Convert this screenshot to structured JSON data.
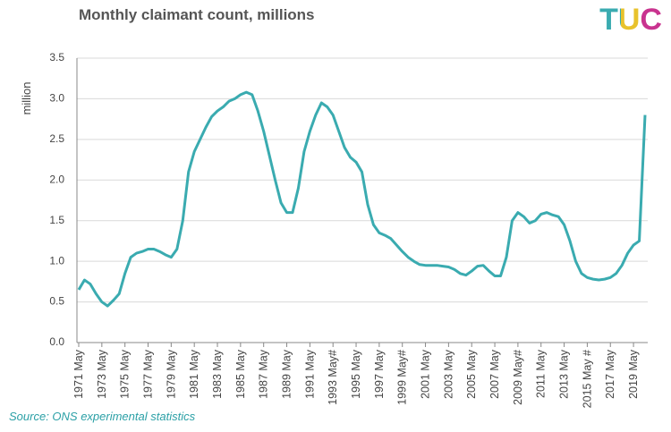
{
  "chart_data": {
    "type": "line",
    "title": "Monthly claimant count, millions",
    "y_label": "million",
    "source": "Source: ONS experimental statistics",
    "logo": "TUC",
    "categories": [
      "1971 May",
      null,
      null,
      null,
      "1973 May",
      null,
      null,
      null,
      "1975 May",
      null,
      null,
      null,
      "1977 May",
      null,
      null,
      null,
      "1979 May",
      null,
      null,
      null,
      "1981 May",
      null,
      null,
      null,
      "1983 May",
      null,
      null,
      null,
      "1985 May",
      null,
      null,
      null,
      "1987 May",
      null,
      null,
      null,
      "1989 May",
      null,
      null,
      null,
      "1991 May",
      null,
      null,
      null,
      "1993 May#",
      null,
      null,
      null,
      "1995 May",
      null,
      null,
      null,
      "1997 May",
      null,
      null,
      null,
      "1999 May#",
      null,
      null,
      null,
      "2001 May",
      null,
      null,
      null,
      "2003 May",
      null,
      null,
      null,
      "2005 May",
      null,
      null,
      null,
      "2007 May",
      null,
      null,
      null,
      "2009 May#",
      null,
      null,
      null,
      "2011 May",
      null,
      null,
      null,
      "2013 May",
      null,
      null,
      null,
      "2015 May #",
      null,
      null,
      null,
      "2017 May",
      null,
      null,
      null,
      "2019 May",
      null,
      null
    ],
    "series": [
      {
        "name": "Claimant count",
        "color": "#3aabb0",
        "values": [
          0.65,
          0.77,
          0.72,
          0.6,
          0.5,
          0.45,
          0.52,
          0.6,
          0.85,
          1.05,
          1.1,
          1.12,
          1.15,
          1.15,
          1.12,
          1.08,
          1.05,
          1.15,
          1.5,
          2.1,
          2.35,
          2.5,
          2.65,
          2.78,
          2.85,
          2.9,
          2.97,
          3.0,
          3.05,
          3.08,
          3.05,
          2.85,
          2.6,
          2.3,
          2.0,
          1.72,
          1.6,
          1.6,
          1.9,
          2.35,
          2.6,
          2.8,
          2.95,
          2.9,
          2.8,
          2.6,
          2.4,
          2.28,
          2.22,
          2.1,
          1.7,
          1.45,
          1.35,
          1.32,
          1.28,
          1.2,
          1.12,
          1.05,
          1.0,
          0.96,
          0.95,
          0.95,
          0.95,
          0.94,
          0.93,
          0.9,
          0.85,
          0.83,
          0.88,
          0.94,
          0.95,
          0.88,
          0.82,
          0.82,
          1.05,
          1.5,
          1.6,
          1.55,
          1.47,
          1.5,
          1.58,
          1.6,
          1.57,
          1.55,
          1.45,
          1.25,
          1.0,
          0.85,
          0.8,
          0.78,
          0.77,
          0.78,
          0.8,
          0.85,
          0.95,
          1.1,
          1.2,
          1.25,
          2.8
        ]
      }
    ],
    "ylim": [
      0,
      3.5
    ],
    "yticks": [
      {
        "value": 0,
        "label": "0.0"
      },
      {
        "value": 0.5,
        "label": "0.5"
      },
      {
        "value": 1,
        "label": "1.0"
      },
      {
        "value": 1.5,
        "label": "1.5"
      },
      {
        "value": 2,
        "label": "2.0"
      },
      {
        "value": 2.5,
        "label": "2.5"
      },
      {
        "value": 3,
        "label": "3.0"
      },
      {
        "value": 3.5,
        "label": "3.5"
      }
    ],
    "grid": true
  }
}
